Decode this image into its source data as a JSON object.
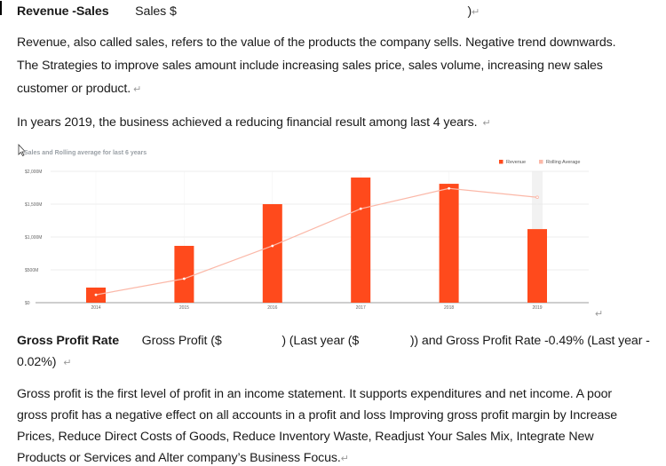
{
  "heading": {
    "title": "Revenue -Sales",
    "subtitle": "Sales $",
    "close_paren": ")"
  },
  "paragraphs": {
    "revenue_line1": "Revenue, also called sales, refers to the value of the products the company sells. Negative trend downwards.",
    "revenue_line2": "The Strategies to improve sales amount include increasing sales price, sales volume, increasing new sales",
    "revenue_line3": "customer or product.",
    "years_line": "In years 2019, the business achieved a reducing financial result among last 4 years."
  },
  "gross_profit": {
    "title": "Gross Profit Rate",
    "text_a": "Gross Profit ($",
    "text_b": ") (Last year ($",
    "text_c": ")) and Gross Profit Rate -0.49% (Last year -",
    "text_d": "0.02%)"
  },
  "gross_paragraph": {
    "line1": "Gross profit is the first level of profit in an income statement. It supports expenditures and net income. A poor",
    "line2": "gross profit has a negative effect on all accounts in a profit and loss Improving gross profit margin by Increase",
    "line3": "Prices, Reduce Direct Costs of Goods, Reduce Inventory Waste, Readjust Your Sales Mix, Integrate New",
    "line4": "Products or Services and Alter company’s Business Focus."
  },
  "marks": {
    "pilcrow": "↵"
  },
  "icons": {
    "cursor": "mouse-pointer-icon",
    "paragraph_mark": "paragraph-return-icon"
  },
  "colors": {
    "revenue": "#FF4A1C",
    "rolling": "#FBB8A8",
    "grid": "#e6e6e6",
    "axis": "#9e9e9e",
    "highlight_band": "#f2f2f2"
  },
  "chart_data": {
    "type": "bar",
    "title": "Sales and Rolling average for last 6 years",
    "categories": [
      "2014",
      "2015",
      "2016",
      "2017",
      "2018",
      "2019"
    ],
    "series": [
      {
        "name": "Revenue",
        "type": "bar",
        "values": [
          230,
          865,
          1500,
          1905,
          1810,
          1120
        ]
      },
      {
        "name": "Rolling Average",
        "type": "line",
        "values": [
          120,
          365,
          865,
          1430,
          1740,
          1605
        ]
      }
    ],
    "xlabel": "",
    "ylabel": "",
    "yunit": "$M",
    "ylim": [
      0,
      2000
    ],
    "yticks": [
      0,
      500,
      1000,
      1500,
      2000
    ],
    "ytick_labels": [
      "$0",
      "$500M",
      "$1,000M",
      "$1,500M",
      "$2,000M"
    ],
    "grid": true,
    "legend": "top-right",
    "highlighted_category": "2019"
  }
}
